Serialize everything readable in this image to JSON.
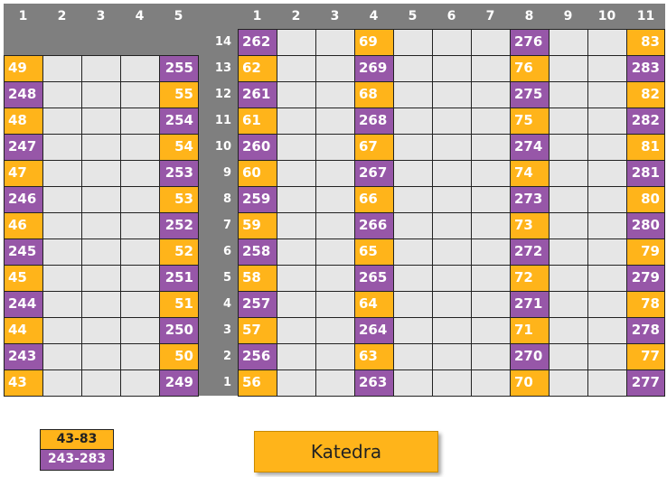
{
  "colors": {
    "orange": "#ffb41a",
    "purple": "#9757a8",
    "empty": "#e6e6e6",
    "header": "#7f7f7f"
  },
  "left_columns": [
    "1",
    "2",
    "3",
    "4",
    "5"
  ],
  "right_columns": [
    "1",
    "2",
    "3",
    "4",
    "5",
    "6",
    "7",
    "8",
    "9",
    "10",
    "11"
  ],
  "rows": [
    {
      "num": "14",
      "left": null,
      "right": [
        {
          "v": "262",
          "c": "purple"
        },
        null,
        null,
        {
          "v": "69",
          "c": "orange"
        },
        null,
        null,
        null,
        {
          "v": "276",
          "c": "purple"
        },
        null,
        null,
        {
          "v": "83",
          "c": "orange"
        }
      ]
    },
    {
      "num": "13",
      "left": [
        {
          "v": "49",
          "c": "orange"
        },
        null,
        null,
        null,
        {
          "v": "255",
          "c": "purple"
        }
      ],
      "right": [
        {
          "v": "62",
          "c": "orange"
        },
        null,
        null,
        {
          "v": "269",
          "c": "purple"
        },
        null,
        null,
        null,
        {
          "v": "76",
          "c": "orange"
        },
        null,
        null,
        {
          "v": "283",
          "c": "purple"
        }
      ]
    },
    {
      "num": "12",
      "left": [
        {
          "v": "248",
          "c": "purple"
        },
        null,
        null,
        null,
        {
          "v": "55",
          "c": "orange"
        }
      ],
      "right": [
        {
          "v": "261",
          "c": "purple"
        },
        null,
        null,
        {
          "v": "68",
          "c": "orange"
        },
        null,
        null,
        null,
        {
          "v": "275",
          "c": "purple"
        },
        null,
        null,
        {
          "v": "82",
          "c": "orange"
        }
      ]
    },
    {
      "num": "11",
      "left": [
        {
          "v": "48",
          "c": "orange"
        },
        null,
        null,
        null,
        {
          "v": "254",
          "c": "purple"
        }
      ],
      "right": [
        {
          "v": "61",
          "c": "orange"
        },
        null,
        null,
        {
          "v": "268",
          "c": "purple"
        },
        null,
        null,
        null,
        {
          "v": "75",
          "c": "orange"
        },
        null,
        null,
        {
          "v": "282",
          "c": "purple"
        }
      ]
    },
    {
      "num": "10",
      "left": [
        {
          "v": "247",
          "c": "purple"
        },
        null,
        null,
        null,
        {
          "v": "54",
          "c": "orange"
        }
      ],
      "right": [
        {
          "v": "260",
          "c": "purple"
        },
        null,
        null,
        {
          "v": "67",
          "c": "orange"
        },
        null,
        null,
        null,
        {
          "v": "274",
          "c": "purple"
        },
        null,
        null,
        {
          "v": "81",
          "c": "orange"
        }
      ]
    },
    {
      "num": "9",
      "left": [
        {
          "v": "47",
          "c": "orange"
        },
        null,
        null,
        null,
        {
          "v": "253",
          "c": "purple"
        }
      ],
      "right": [
        {
          "v": "60",
          "c": "orange"
        },
        null,
        null,
        {
          "v": "267",
          "c": "purple"
        },
        null,
        null,
        null,
        {
          "v": "74",
          "c": "orange"
        },
        null,
        null,
        {
          "v": "281",
          "c": "purple"
        }
      ]
    },
    {
      "num": "8",
      "left": [
        {
          "v": "246",
          "c": "purple"
        },
        null,
        null,
        null,
        {
          "v": "53",
          "c": "orange"
        }
      ],
      "right": [
        {
          "v": "259",
          "c": "purple"
        },
        null,
        null,
        {
          "v": "66",
          "c": "orange"
        },
        null,
        null,
        null,
        {
          "v": "273",
          "c": "purple"
        },
        null,
        null,
        {
          "v": "80",
          "c": "orange"
        }
      ]
    },
    {
      "num": "7",
      "left": [
        {
          "v": "46",
          "c": "orange"
        },
        null,
        null,
        null,
        {
          "v": "252",
          "c": "purple"
        }
      ],
      "right": [
        {
          "v": "59",
          "c": "orange"
        },
        null,
        null,
        {
          "v": "266",
          "c": "purple"
        },
        null,
        null,
        null,
        {
          "v": "73",
          "c": "orange"
        },
        null,
        null,
        {
          "v": "280",
          "c": "purple"
        }
      ]
    },
    {
      "num": "6",
      "left": [
        {
          "v": "245",
          "c": "purple"
        },
        null,
        null,
        null,
        {
          "v": "52",
          "c": "orange"
        }
      ],
      "right": [
        {
          "v": "258",
          "c": "purple"
        },
        null,
        null,
        {
          "v": "65",
          "c": "orange"
        },
        null,
        null,
        null,
        {
          "v": "272",
          "c": "purple"
        },
        null,
        null,
        {
          "v": "79",
          "c": "orange"
        }
      ]
    },
    {
      "num": "5",
      "left": [
        {
          "v": "45",
          "c": "orange"
        },
        null,
        null,
        null,
        {
          "v": "251",
          "c": "purple"
        }
      ],
      "right": [
        {
          "v": "58",
          "c": "orange"
        },
        null,
        null,
        {
          "v": "265",
          "c": "purple"
        },
        null,
        null,
        null,
        {
          "v": "72",
          "c": "orange"
        },
        null,
        null,
        {
          "v": "279",
          "c": "purple"
        }
      ]
    },
    {
      "num": "4",
      "left": [
        {
          "v": "244",
          "c": "purple"
        },
        null,
        null,
        null,
        {
          "v": "51",
          "c": "orange"
        }
      ],
      "right": [
        {
          "v": "257",
          "c": "purple"
        },
        null,
        null,
        {
          "v": "64",
          "c": "orange"
        },
        null,
        null,
        null,
        {
          "v": "271",
          "c": "purple"
        },
        null,
        null,
        {
          "v": "78",
          "c": "orange"
        }
      ]
    },
    {
      "num": "3",
      "left": [
        {
          "v": "44",
          "c": "orange"
        },
        null,
        null,
        null,
        {
          "v": "250",
          "c": "purple"
        }
      ],
      "right": [
        {
          "v": "57",
          "c": "orange"
        },
        null,
        null,
        {
          "v": "264",
          "c": "purple"
        },
        null,
        null,
        null,
        {
          "v": "71",
          "c": "orange"
        },
        null,
        null,
        {
          "v": "278",
          "c": "purple"
        }
      ]
    },
    {
      "num": "2",
      "left": [
        {
          "v": "243",
          "c": "purple"
        },
        null,
        null,
        null,
        {
          "v": "50",
          "c": "orange"
        }
      ],
      "right": [
        {
          "v": "256",
          "c": "purple"
        },
        null,
        null,
        {
          "v": "63",
          "c": "orange"
        },
        null,
        null,
        null,
        {
          "v": "270",
          "c": "purple"
        },
        null,
        null,
        {
          "v": "77",
          "c": "orange"
        }
      ]
    },
    {
      "num": "1",
      "left": [
        {
          "v": "43",
          "c": "orange"
        },
        null,
        null,
        null,
        {
          "v": "249",
          "c": "purple"
        }
      ],
      "right": [
        {
          "v": "56",
          "c": "orange"
        },
        null,
        null,
        {
          "v": "263",
          "c": "purple"
        },
        null,
        null,
        null,
        {
          "v": "70",
          "c": "orange"
        },
        null,
        null,
        {
          "v": "277",
          "c": "purple"
        }
      ]
    }
  ],
  "legend": {
    "orange_range": "43-83",
    "purple_range": "243-283"
  },
  "desk": {
    "label": "Katedra"
  }
}
